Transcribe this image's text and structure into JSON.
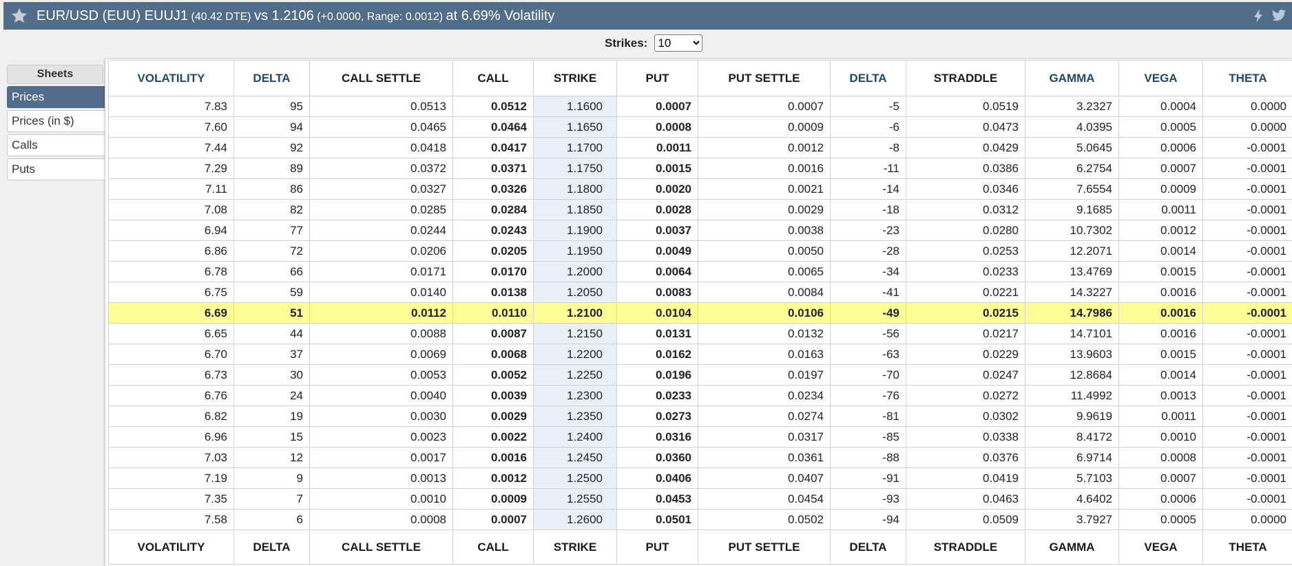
{
  "header": {
    "instrument": "EUR/USD (EUU) EUUJ1",
    "dte": "(40.42 DTE)",
    "vs": "vs 1.2106",
    "change": "(+0.0000,",
    "range": "Range: 0.0012)",
    "vol": "at 6.69% Volatility"
  },
  "strikes": {
    "label": "Strikes:",
    "value": "10",
    "options": [
      "10"
    ]
  },
  "sidebar": {
    "heading": "Sheets",
    "items": [
      {
        "label": "Prices",
        "active": true
      },
      {
        "label": "Prices (in $)",
        "active": false
      },
      {
        "label": "Calls",
        "active": false
      },
      {
        "label": "Puts",
        "active": false
      }
    ]
  },
  "colors": {
    "header_bg": "#526d89",
    "highlight_row": "#ffff99",
    "strike_col": "#e9eff7",
    "header_text_blue": "#22476d"
  },
  "table": {
    "columns": [
      "VOLATILITY",
      "DELTA",
      "CALL SETTLE",
      "CALL",
      "STRIKE",
      "PUT",
      "PUT SETTLE",
      "DELTA",
      "STRADDLE",
      "GAMMA",
      "VEGA",
      "THETA"
    ],
    "highlight_index": 10,
    "rows": [
      [
        "7.83",
        "95",
        "0.0513",
        "0.0512",
        "1.1600",
        "0.0007",
        "0.0007",
        "-5",
        "0.0519",
        "3.2327",
        "0.0004",
        "0.0000"
      ],
      [
        "7.60",
        "94",
        "0.0465",
        "0.0464",
        "1.1650",
        "0.0008",
        "0.0009",
        "-6",
        "0.0473",
        "4.0395",
        "0.0005",
        "0.0000"
      ],
      [
        "7.44",
        "92",
        "0.0418",
        "0.0417",
        "1.1700",
        "0.0011",
        "0.0012",
        "-8",
        "0.0429",
        "5.0645",
        "0.0006",
        "-0.0001"
      ],
      [
        "7.29",
        "89",
        "0.0372",
        "0.0371",
        "1.1750",
        "0.0015",
        "0.0016",
        "-11",
        "0.0386",
        "6.2754",
        "0.0007",
        "-0.0001"
      ],
      [
        "7.11",
        "86",
        "0.0327",
        "0.0326",
        "1.1800",
        "0.0020",
        "0.0021",
        "-14",
        "0.0346",
        "7.6554",
        "0.0009",
        "-0.0001"
      ],
      [
        "7.08",
        "82",
        "0.0285",
        "0.0284",
        "1.1850",
        "0.0028",
        "0.0029",
        "-18",
        "0.0312",
        "9.1685",
        "0.0011",
        "-0.0001"
      ],
      [
        "6.94",
        "77",
        "0.0244",
        "0.0243",
        "1.1900",
        "0.0037",
        "0.0038",
        "-23",
        "0.0280",
        "10.7302",
        "0.0012",
        "-0.0001"
      ],
      [
        "6.86",
        "72",
        "0.0206",
        "0.0205",
        "1.1950",
        "0.0049",
        "0.0050",
        "-28",
        "0.0253",
        "12.2071",
        "0.0014",
        "-0.0001"
      ],
      [
        "6.78",
        "66",
        "0.0171",
        "0.0170",
        "1.2000",
        "0.0064",
        "0.0065",
        "-34",
        "0.0233",
        "13.4769",
        "0.0015",
        "-0.0001"
      ],
      [
        "6.75",
        "59",
        "0.0140",
        "0.0138",
        "1.2050",
        "0.0083",
        "0.0084",
        "-41",
        "0.0221",
        "14.3227",
        "0.0016",
        "-0.0001"
      ],
      [
        "6.69",
        "51",
        "0.0112",
        "0.0110",
        "1.2100",
        "0.0104",
        "0.0106",
        "-49",
        "0.0215",
        "14.7986",
        "0.0016",
        "-0.0001"
      ],
      [
        "6.65",
        "44",
        "0.0088",
        "0.0087",
        "1.2150",
        "0.0131",
        "0.0132",
        "-56",
        "0.0217",
        "14.7101",
        "0.0016",
        "-0.0001"
      ],
      [
        "6.70",
        "37",
        "0.0069",
        "0.0068",
        "1.2200",
        "0.0162",
        "0.0163",
        "-63",
        "0.0229",
        "13.9603",
        "0.0015",
        "-0.0001"
      ],
      [
        "6.73",
        "30",
        "0.0053",
        "0.0052",
        "1.2250",
        "0.0196",
        "0.0197",
        "-70",
        "0.0247",
        "12.8684",
        "0.0014",
        "-0.0001"
      ],
      [
        "6.76",
        "24",
        "0.0040",
        "0.0039",
        "1.2300",
        "0.0233",
        "0.0234",
        "-76",
        "0.0272",
        "11.4992",
        "0.0013",
        "-0.0001"
      ],
      [
        "6.82",
        "19",
        "0.0030",
        "0.0029",
        "1.2350",
        "0.0273",
        "0.0274",
        "-81",
        "0.0302",
        "9.9619",
        "0.0011",
        "-0.0001"
      ],
      [
        "6.96",
        "15",
        "0.0023",
        "0.0022",
        "1.2400",
        "0.0316",
        "0.0317",
        "-85",
        "0.0338",
        "8.4172",
        "0.0010",
        "-0.0001"
      ],
      [
        "7.03",
        "12",
        "0.0017",
        "0.0016",
        "1.2450",
        "0.0360",
        "0.0361",
        "-88",
        "0.0376",
        "6.9714",
        "0.0008",
        "-0.0001"
      ],
      [
        "7.19",
        "9",
        "0.0013",
        "0.0012",
        "1.2500",
        "0.0406",
        "0.0407",
        "-91",
        "0.0419",
        "5.7103",
        "0.0007",
        "-0.0001"
      ],
      [
        "7.35",
        "7",
        "0.0010",
        "0.0009",
        "1.2550",
        "0.0453",
        "0.0454",
        "-93",
        "0.0463",
        "4.6402",
        "0.0006",
        "-0.0001"
      ],
      [
        "7.58",
        "6",
        "0.0008",
        "0.0007",
        "1.2600",
        "0.0501",
        "0.0502",
        "-94",
        "0.0509",
        "3.7927",
        "0.0005",
        "0.0000"
      ]
    ]
  }
}
